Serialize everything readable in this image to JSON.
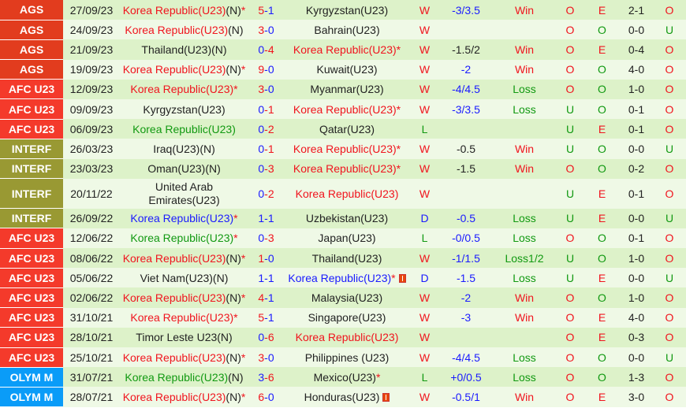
{
  "colors": {
    "AGS": "#e23c1e",
    "AFC U23": "#f43a2b",
    "INTERF": "#999933",
    "OLYM M": "#0a9cf8"
  },
  "rows": [
    {
      "league": "AGS",
      "date": "27/09/23",
      "home": {
        "name": "Korea Republic(U23)",
        "c": "red",
        "n": "(N)",
        "star": "*"
      },
      "hs": "5",
      "as": "1",
      "away": {
        "name": "Kyrgyzstan(U23)",
        "c": "black"
      },
      "res": "W",
      "hcp": "-3/3.5",
      "hc": "blue",
      "hr": "Win",
      "ou": "O",
      "oe": "E",
      "ht": "2-1",
      "ou2": "O"
    },
    {
      "league": "AGS",
      "date": "24/09/23",
      "home": {
        "name": "Korea Republic(U23)",
        "c": "red",
        "n": "(N)"
      },
      "hs": "3",
      "as": "0",
      "away": {
        "name": "Bahrain(U23)",
        "c": "black"
      },
      "res": "W",
      "hcp": "",
      "hc": "black",
      "hr": "",
      "ou": "O",
      "oe": "O",
      "ht": "0-0",
      "ou2": "U"
    },
    {
      "league": "AGS",
      "date": "21/09/23",
      "home": {
        "name": "Thailand(U23)(N)",
        "c": "black"
      },
      "hs": "0",
      "as": "4",
      "away": {
        "name": "Korea Republic(U23)",
        "c": "red",
        "star": "*"
      },
      "res": "W",
      "hcp": "-1.5/2",
      "hc": "black",
      "hr": "Win",
      "ou": "O",
      "oe": "E",
      "ht": "0-4",
      "ou2": "O"
    },
    {
      "league": "AGS",
      "date": "19/09/23",
      "home": {
        "name": "Korea Republic(U23)",
        "c": "red",
        "n": "(N)",
        "star": "*"
      },
      "hs": "9",
      "as": "0",
      "away": {
        "name": "Kuwait(U23)",
        "c": "black"
      },
      "res": "W",
      "hcp": "-2",
      "hc": "blue",
      "hr": "Win",
      "ou": "O",
      "oe": "O",
      "ht": "4-0",
      "ou2": "O"
    },
    {
      "league": "AFC U23",
      "date": "12/09/23",
      "home": {
        "name": "Korea Republic(U23)",
        "c": "red",
        "star": "*"
      },
      "hs": "3",
      "as": "0",
      "away": {
        "name": "Myanmar(U23)",
        "c": "black"
      },
      "res": "W",
      "hcp": "-4/4.5",
      "hc": "blue",
      "hr": "Loss",
      "ou": "O",
      "oe": "O",
      "ht": "1-0",
      "ou2": "O"
    },
    {
      "league": "AFC U23",
      "date": "09/09/23",
      "home": {
        "name": "Kyrgyzstan(U23)",
        "c": "black"
      },
      "hs": "0",
      "as": "1",
      "away": {
        "name": "Korea Republic(U23)",
        "c": "red",
        "star": "*"
      },
      "res": "W",
      "hcp": "-3/3.5",
      "hc": "blue",
      "hr": "Loss",
      "ou": "U",
      "oe": "O",
      "ht": "0-1",
      "ou2": "O"
    },
    {
      "league": "AFC U23",
      "date": "06/09/23",
      "home": {
        "name": "Korea Republic(U23)",
        "c": "green"
      },
      "hs": "0",
      "as": "2",
      "away": {
        "name": "Qatar(U23)",
        "c": "black"
      },
      "res": "L",
      "hcp": "",
      "hc": "black",
      "hr": "",
      "ou": "U",
      "oe": "E",
      "ht": "0-1",
      "ou2": "O"
    },
    {
      "league": "INTERF",
      "date": "26/03/23",
      "home": {
        "name": "Iraq(U23)(N)",
        "c": "black"
      },
      "hs": "0",
      "as": "1",
      "away": {
        "name": "Korea Republic(U23)",
        "c": "red",
        "star": "*"
      },
      "res": "W",
      "hcp": "-0.5",
      "hc": "black",
      "hr": "Win",
      "ou": "U",
      "oe": "O",
      "ht": "0-0",
      "ou2": "U"
    },
    {
      "league": "INTERF",
      "date": "23/03/23",
      "home": {
        "name": "Oman(U23)(N)",
        "c": "black"
      },
      "hs": "0",
      "as": "3",
      "away": {
        "name": "Korea Republic(U23)",
        "c": "red",
        "star": "*"
      },
      "res": "W",
      "hcp": "-1.5",
      "hc": "black",
      "hr": "Win",
      "ou": "O",
      "oe": "O",
      "ht": "0-2",
      "ou2": "O"
    },
    {
      "league": "INTERF",
      "date": "20/11/22",
      "tall": true,
      "home": {
        "name": "United Arab Emirates(U23)",
        "c": "black"
      },
      "hs": "0",
      "as": "2",
      "away": {
        "name": "Korea Republic(U23)",
        "c": "red"
      },
      "res": "W",
      "hcp": "",
      "hc": "black",
      "hr": "",
      "ou": "U",
      "oe": "E",
      "ht": "0-1",
      "ou2": "O"
    },
    {
      "league": "INTERF",
      "date": "26/09/22",
      "home": {
        "name": "Korea Republic(U23)",
        "c": "blue",
        "star": "*"
      },
      "hs": "1",
      "as": "1",
      "away": {
        "name": "Uzbekistan(U23)",
        "c": "black"
      },
      "res": "D",
      "hcp": "-0.5",
      "hc": "blue",
      "hr": "Loss",
      "ou": "U",
      "oe": "E",
      "ht": "0-0",
      "ou2": "U"
    },
    {
      "league": "AFC U23",
      "date": "12/06/22",
      "home": {
        "name": "Korea Republic(U23)",
        "c": "green",
        "star": "*"
      },
      "hs": "0",
      "as": "3",
      "away": {
        "name": "Japan(U23)",
        "c": "black"
      },
      "res": "L",
      "hcp": "-0/0.5",
      "hc": "blue",
      "hr": "Loss",
      "ou": "O",
      "oe": "O",
      "ht": "0-1",
      "ou2": "O"
    },
    {
      "league": "AFC U23",
      "date": "08/06/22",
      "home": {
        "name": "Korea Republic(U23)",
        "c": "red",
        "n": "(N)",
        "star": "*"
      },
      "hs": "1",
      "as": "0",
      "away": {
        "name": "Thailand(U23)",
        "c": "black"
      },
      "res": "W",
      "hcp": "-1/1.5",
      "hc": "blue",
      "hr": "Loss1/2",
      "ou": "U",
      "oe": "O",
      "ht": "1-0",
      "ou2": "O"
    },
    {
      "league": "AFC U23",
      "date": "05/06/22",
      "home": {
        "name": "Viet Nam(U23)(N)",
        "c": "black"
      },
      "hs": "1",
      "as": "1",
      "away": {
        "name": "Korea Republic(U23)",
        "c": "blue",
        "star": "*",
        "card": "red-card-icon"
      },
      "res": "D",
      "hcp": "-1.5",
      "hc": "blue",
      "hr": "Loss",
      "ou": "U",
      "oe": "E",
      "ht": "0-0",
      "ou2": "U"
    },
    {
      "league": "AFC U23",
      "date": "02/06/22",
      "home": {
        "name": "Korea Republic(U23)",
        "c": "red",
        "n": "(N)",
        "star": "*"
      },
      "hs": "4",
      "as": "1",
      "away": {
        "name": "Malaysia(U23)",
        "c": "black"
      },
      "res": "W",
      "hcp": "-2",
      "hc": "blue",
      "hr": "Win",
      "ou": "O",
      "oe": "O",
      "ht": "1-0",
      "ou2": "O"
    },
    {
      "league": "AFC U23",
      "date": "31/10/21",
      "home": {
        "name": "Korea Republic(U23)",
        "c": "red",
        "star": "*"
      },
      "hs": "5",
      "as": "1",
      "away": {
        "name": "Singapore(U23)",
        "c": "black"
      },
      "res": "W",
      "hcp": "-3",
      "hc": "blue",
      "hr": "Win",
      "ou": "O",
      "oe": "E",
      "ht": "4-0",
      "ou2": "O"
    },
    {
      "league": "AFC U23",
      "date": "28/10/21",
      "home": {
        "name": "Timor Leste U23(N)",
        "c": "black"
      },
      "hs": "0",
      "as": "6",
      "away": {
        "name": "Korea Republic(U23)",
        "c": "red"
      },
      "res": "W",
      "hcp": "",
      "hc": "black",
      "hr": "",
      "ou": "O",
      "oe": "E",
      "ht": "0-3",
      "ou2": "O"
    },
    {
      "league": "AFC U23",
      "date": "25/10/21",
      "home": {
        "name": "Korea Republic(U23)",
        "c": "red",
        "n": "(N)",
        "star": "*"
      },
      "hs": "3",
      "as": "0",
      "away": {
        "name": "Philippines (U23)",
        "c": "black"
      },
      "res": "W",
      "hcp": "-4/4.5",
      "hc": "blue",
      "hr": "Loss",
      "ou": "O",
      "oe": "O",
      "ht": "0-0",
      "ou2": "U"
    },
    {
      "league": "OLYM M",
      "date": "31/07/21",
      "home": {
        "name": "Korea Republic(U23)",
        "c": "green",
        "n": "(N)"
      },
      "hs": "3",
      "as": "6",
      "away": {
        "name": "Mexico(U23)",
        "c": "black",
        "star": "*"
      },
      "res": "L",
      "hcp": "+0/0.5",
      "hc": "blue",
      "hr": "Loss",
      "ou": "O",
      "oe": "O",
      "ht": "1-3",
      "ou2": "O"
    },
    {
      "league": "OLYM M",
      "date": "28/07/21",
      "home": {
        "name": "Korea Republic(U23)",
        "c": "red",
        "n": "(N)",
        "star": "*"
      },
      "hs": "6",
      "as": "0",
      "away": {
        "name": "Honduras(U23)",
        "c": "black",
        "card": "red-card-icon"
      },
      "res": "W",
      "hcp": "-0.5/1",
      "hc": "blue",
      "hr": "Win",
      "ou": "O",
      "oe": "E",
      "ht": "3-0",
      "ou2": "O"
    }
  ]
}
